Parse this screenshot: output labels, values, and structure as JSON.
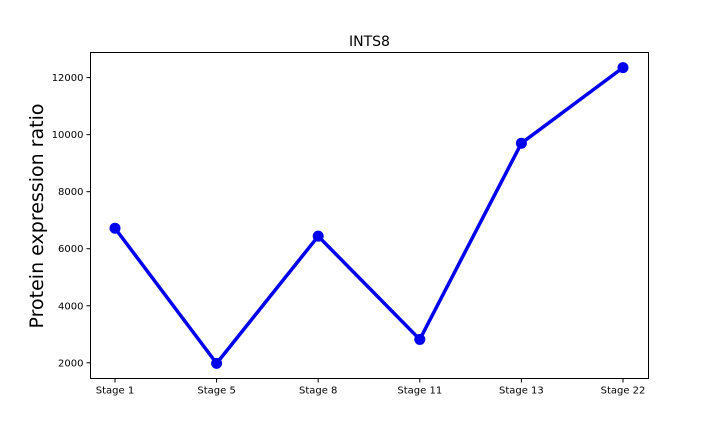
{
  "chart_data": {
    "type": "line",
    "title": "INTS8",
    "xlabel": "",
    "ylabel": "Protein expression ratio",
    "categories": [
      "Stage 1",
      "Stage 5",
      "Stage 8",
      "Stage 11",
      "Stage 13",
      "Stage 22"
    ],
    "series": [
      {
        "values": [
          6720,
          1980,
          6440,
          2820,
          9700,
          12350
        ]
      }
    ],
    "ylim": [
      1450,
      12880
    ],
    "yticks": [
      2000,
      4000,
      6000,
      8000,
      10000,
      12000
    ],
    "grid": false,
    "legend": "none"
  },
  "colors": {
    "line": "#0000ee",
    "marker": "#0000ee",
    "axes": "#000000"
  }
}
